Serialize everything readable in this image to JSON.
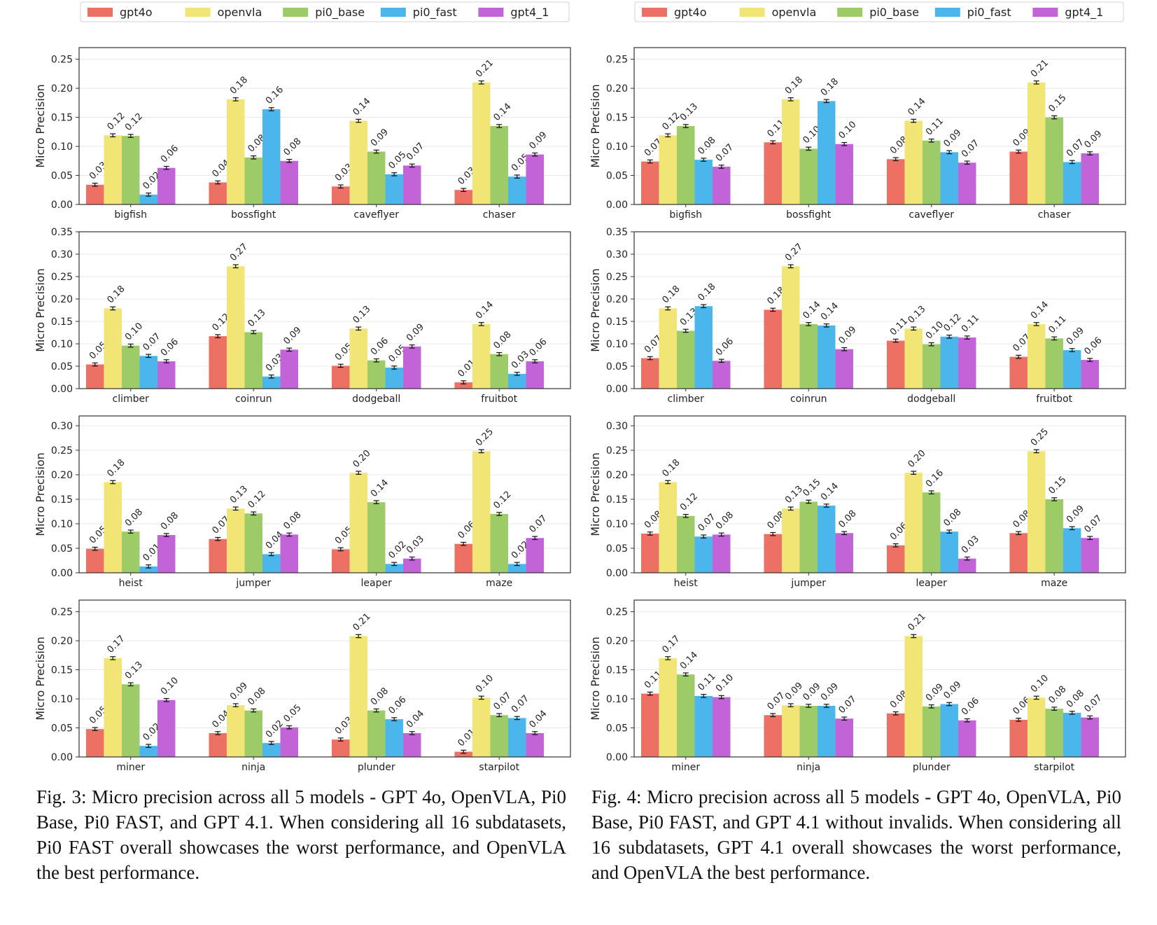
{
  "legend": [
    "gpt4o",
    "openvla",
    "pi0_base",
    "pi0_fast",
    "gpt4_1"
  ],
  "colors": {
    "gpt4o": "#ec7063",
    "openvla": "#f0e575",
    "pi0_base": "#9ccb67",
    "pi0_fast": "#4ab6ec",
    "gpt4_1": "#c263d8"
  },
  "ylabel": "Micro Precision",
  "captions": [
    "Fig. 3: Micro precision across all 5 models - GPT 4o, OpenVLA, Pi0 Base, Pi0 FAST, and GPT 4.1. When considering all 16 subdatasets, Pi0 FAST overall showcases the worst performance, and OpenVLA the best performance.",
    "Fig. 4: Micro precision across all 5 models - GPT 4o, OpenVLA, Pi0 Base, Pi0 FAST, and GPT 4.1 without invalids. When considering all 16 subdatasets, GPT 4.1 overall showcases the worst performance, and OpenVLA the best performance."
  ],
  "chart_data": [
    {
      "type": "bar",
      "figure": "Fig. 3",
      "categories": [
        "bigfish",
        "bossfight",
        "caveflyer",
        "chaser"
      ],
      "ylim": [
        0,
        0.27
      ],
      "yticks": [
        "0.00",
        "0.05",
        "0.10",
        "0.15",
        "0.20",
        "0.25"
      ],
      "series": [
        {
          "name": "gpt4o",
          "values": [
            0.034,
            0.038,
            0.031,
            0.025
          ]
        },
        {
          "name": "openvla",
          "values": [
            0.119,
            0.181,
            0.144,
            0.21
          ]
        },
        {
          "name": "pi0_base",
          "values": [
            0.118,
            0.081,
            0.091,
            0.135
          ]
        },
        {
          "name": "pi0_fast",
          "values": [
            0.017,
            0.164,
            0.052,
            0.048
          ]
        },
        {
          "name": "gpt4_1",
          "values": [
            0.063,
            0.075,
            0.067,
            0.086
          ]
        }
      ],
      "labels": [
        [
          "0.03",
          "0.04",
          "0.03",
          "0.03"
        ],
        [
          "0.12",
          "0.18",
          "0.14",
          "0.21"
        ],
        [
          "0.12",
          "0.08",
          "0.09",
          "0.14"
        ],
        [
          "0.02",
          "0.16",
          "0.05",
          "0.05"
        ],
        [
          "0.06",
          "0.08",
          "0.07",
          "0.09"
        ]
      ]
    },
    {
      "type": "bar",
      "figure": "Fig. 3",
      "categories": [
        "climber",
        "coinrun",
        "dodgeball",
        "fruitbot"
      ],
      "ylim": [
        0,
        0.35
      ],
      "yticks": [
        "0.00",
        "0.05",
        "0.10",
        "0.15",
        "0.20",
        "0.25",
        "0.30",
        "0.35"
      ],
      "series": [
        {
          "name": "gpt4o",
          "values": [
            0.054,
            0.117,
            0.051,
            0.014
          ]
        },
        {
          "name": "openvla",
          "values": [
            0.179,
            0.273,
            0.134,
            0.144
          ]
        },
        {
          "name": "pi0_base",
          "values": [
            0.096,
            0.126,
            0.063,
            0.077
          ]
        },
        {
          "name": "pi0_fast",
          "values": [
            0.073,
            0.027,
            0.047,
            0.033
          ]
        },
        {
          "name": "gpt4_1",
          "values": [
            0.061,
            0.087,
            0.094,
            0.061
          ]
        }
      ],
      "labels": [
        [
          "0.05",
          "0.12",
          "0.05",
          "0.01"
        ],
        [
          "0.18",
          "0.27",
          "0.13",
          "0.14"
        ],
        [
          "0.10",
          "0.13",
          "0.06",
          "0.08"
        ],
        [
          "0.07",
          "0.03",
          "0.05",
          "0.03"
        ],
        [
          "0.06",
          "0.09",
          "0.09",
          "0.06"
        ]
      ]
    },
    {
      "type": "bar",
      "figure": "Fig. 3",
      "categories": [
        "heist",
        "jumper",
        "leaper",
        "maze"
      ],
      "ylim": [
        0,
        0.32
      ],
      "yticks": [
        "0.00",
        "0.05",
        "0.10",
        "0.15",
        "0.20",
        "0.25",
        "0.30"
      ],
      "series": [
        {
          "name": "gpt4o",
          "values": [
            0.049,
            0.069,
            0.048,
            0.059
          ]
        },
        {
          "name": "openvla",
          "values": [
            0.185,
            0.131,
            0.204,
            0.248
          ]
        },
        {
          "name": "pi0_base",
          "values": [
            0.084,
            0.121,
            0.144,
            0.12
          ]
        },
        {
          "name": "pi0_fast",
          "values": [
            0.013,
            0.038,
            0.018,
            0.018
          ]
        },
        {
          "name": "gpt4_1",
          "values": [
            0.077,
            0.078,
            0.029,
            0.071
          ]
        }
      ],
      "labels": [
        [
          "0.05",
          "0.07",
          "0.05",
          "0.06"
        ],
        [
          "0.18",
          "0.13",
          "0.20",
          "0.25"
        ],
        [
          "0.08",
          "0.12",
          "0.14",
          "0.12"
        ],
        [
          "0.01",
          "0.04",
          "0.02",
          "0.02"
        ],
        [
          "0.08",
          "0.08",
          "0.03",
          "0.07"
        ]
      ]
    },
    {
      "type": "bar",
      "figure": "Fig. 3",
      "categories": [
        "miner",
        "ninja",
        "plunder",
        "starpilot"
      ],
      "ylim": [
        0,
        0.27
      ],
      "yticks": [
        "0.00",
        "0.05",
        "0.10",
        "0.15",
        "0.20",
        "0.25"
      ],
      "series": [
        {
          "name": "gpt4o",
          "values": [
            0.048,
            0.041,
            0.03,
            0.009
          ]
        },
        {
          "name": "openvla",
          "values": [
            0.17,
            0.089,
            0.208,
            0.102
          ]
        },
        {
          "name": "pi0_base",
          "values": [
            0.125,
            0.08,
            0.08,
            0.072
          ]
        },
        {
          "name": "pi0_fast",
          "values": [
            0.019,
            0.024,
            0.065,
            0.067
          ]
        },
        {
          "name": "gpt4_1",
          "values": [
            0.098,
            0.051,
            0.041,
            0.041
          ]
        }
      ],
      "labels": [
        [
          "0.05",
          "0.04",
          "0.03",
          "0.01"
        ],
        [
          "0.17",
          "0.09",
          "0.21",
          "0.10"
        ],
        [
          "0.13",
          "0.08",
          "0.08",
          "0.07"
        ],
        [
          "0.02",
          "0.02",
          "0.06",
          "0.07"
        ],
        [
          "0.10",
          "0.05",
          "0.04",
          "0.04"
        ]
      ]
    },
    {
      "type": "bar",
      "figure": "Fig. 4",
      "categories": [
        "bigfish",
        "bossfight",
        "caveflyer",
        "chaser"
      ],
      "ylim": [
        0,
        0.27
      ],
      "yticks": [
        "0.00",
        "0.05",
        "0.10",
        "0.15",
        "0.20",
        "0.25"
      ],
      "series": [
        {
          "name": "gpt4o",
          "values": [
            0.074,
            0.107,
            0.078,
            0.091
          ]
        },
        {
          "name": "openvla",
          "values": [
            0.119,
            0.181,
            0.144,
            0.21
          ]
        },
        {
          "name": "pi0_base",
          "values": [
            0.135,
            0.096,
            0.11,
            0.15
          ]
        },
        {
          "name": "pi0_fast",
          "values": [
            0.077,
            0.178,
            0.09,
            0.073
          ]
        },
        {
          "name": "gpt4_1",
          "values": [
            0.065,
            0.104,
            0.072,
            0.088
          ]
        }
      ],
      "labels": [
        [
          "0.07",
          "0.11",
          "0.08",
          "0.09"
        ],
        [
          "0.12",
          "0.18",
          "0.14",
          "0.21"
        ],
        [
          "0.13",
          "0.10",
          "0.11",
          "0.15"
        ],
        [
          "0.08",
          "0.18",
          "0.09",
          "0.07"
        ],
        [
          "0.07",
          "0.10",
          "0.07",
          "0.09"
        ]
      ]
    },
    {
      "type": "bar",
      "figure": "Fig. 4",
      "categories": [
        "climber",
        "coinrun",
        "dodgeball",
        "fruitbot"
      ],
      "ylim": [
        0,
        0.35
      ],
      "yticks": [
        "0.00",
        "0.05",
        "0.10",
        "0.15",
        "0.20",
        "0.25",
        "0.30",
        "0.35"
      ],
      "series": [
        {
          "name": "gpt4o",
          "values": [
            0.068,
            0.176,
            0.107,
            0.071
          ]
        },
        {
          "name": "openvla",
          "values": [
            0.179,
            0.273,
            0.134,
            0.144
          ]
        },
        {
          "name": "pi0_base",
          "values": [
            0.129,
            0.144,
            0.099,
            0.112
          ]
        },
        {
          "name": "pi0_fast",
          "values": [
            0.184,
            0.141,
            0.116,
            0.086
          ]
        },
        {
          "name": "gpt4_1",
          "values": [
            0.062,
            0.088,
            0.114,
            0.064
          ]
        }
      ],
      "labels": [
        [
          "0.07",
          "0.18",
          "0.11",
          "0.07"
        ],
        [
          "0.18",
          "0.27",
          "0.13",
          "0.14"
        ],
        [
          "0.13",
          "0.14",
          "0.10",
          "0.11"
        ],
        [
          "0.18",
          "0.14",
          "0.12",
          "0.09"
        ],
        [
          "0.06",
          "0.09",
          "0.11",
          "0.06"
        ]
      ]
    },
    {
      "type": "bar",
      "figure": "Fig. 4",
      "categories": [
        "heist",
        "jumper",
        "leaper",
        "maze"
      ],
      "ylim": [
        0,
        0.32
      ],
      "yticks": [
        "0.00",
        "0.05",
        "0.10",
        "0.15",
        "0.20",
        "0.25",
        "0.30"
      ],
      "series": [
        {
          "name": "gpt4o",
          "values": [
            0.08,
            0.079,
            0.056,
            0.081
          ]
        },
        {
          "name": "openvla",
          "values": [
            0.185,
            0.131,
            0.204,
            0.248
          ]
        },
        {
          "name": "pi0_base",
          "values": [
            0.116,
            0.145,
            0.164,
            0.15
          ]
        },
        {
          "name": "pi0_fast",
          "values": [
            0.074,
            0.137,
            0.084,
            0.091
          ]
        },
        {
          "name": "gpt4_1",
          "values": [
            0.078,
            0.081,
            0.029,
            0.071
          ]
        }
      ],
      "labels": [
        [
          "0.08",
          "0.08",
          "0.06",
          "0.08"
        ],
        [
          "0.18",
          "0.13",
          "0.20",
          "0.25"
        ],
        [
          "0.12",
          "0.15",
          "0.16",
          "0.15"
        ],
        [
          "0.07",
          "0.14",
          "0.08",
          "0.09"
        ],
        [
          "0.08",
          "0.08",
          "0.03",
          "0.07"
        ]
      ]
    },
    {
      "type": "bar",
      "figure": "Fig. 4",
      "categories": [
        "miner",
        "ninja",
        "plunder",
        "starpilot"
      ],
      "ylim": [
        0,
        0.27
      ],
      "yticks": [
        "0.00",
        "0.05",
        "0.10",
        "0.15",
        "0.20",
        "0.25"
      ],
      "series": [
        {
          "name": "gpt4o",
          "values": [
            0.109,
            0.072,
            0.075,
            0.064
          ]
        },
        {
          "name": "openvla",
          "values": [
            0.17,
            0.089,
            0.208,
            0.102
          ]
        },
        {
          "name": "pi0_base",
          "values": [
            0.142,
            0.088,
            0.087,
            0.083
          ]
        },
        {
          "name": "pi0_fast",
          "values": [
            0.105,
            0.088,
            0.091,
            0.076
          ]
        },
        {
          "name": "gpt4_1",
          "values": [
            0.103,
            0.066,
            0.063,
            0.068
          ]
        }
      ],
      "labels": [
        [
          "0.11",
          "0.07",
          "0.08",
          "0.06"
        ],
        [
          "0.17",
          "0.09",
          "0.21",
          "0.10"
        ],
        [
          "0.14",
          "0.09",
          "0.09",
          "0.08"
        ],
        [
          "0.11",
          "0.09",
          "0.09",
          "0.08"
        ],
        [
          "0.10",
          "0.07",
          "0.06",
          "0.07"
        ]
      ]
    }
  ]
}
